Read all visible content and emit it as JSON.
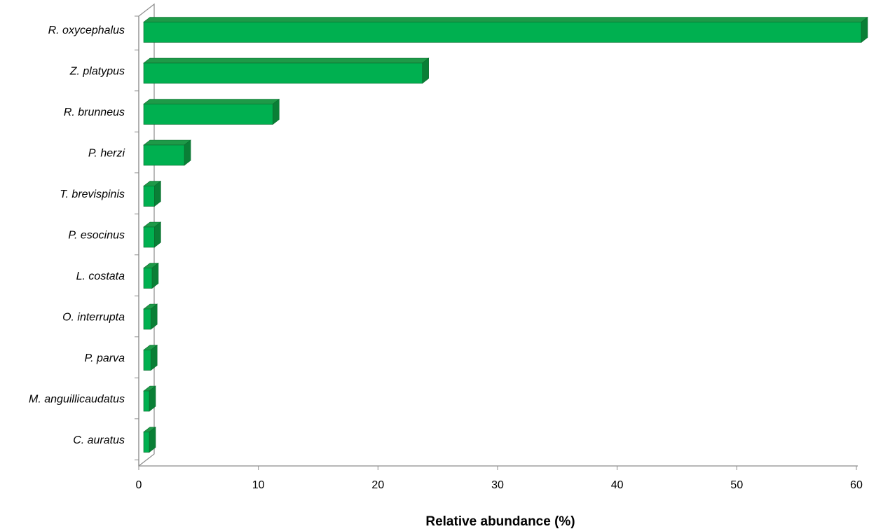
{
  "chart_data": {
    "type": "bar",
    "orientation": "horizontal",
    "style": "3d",
    "categories": [
      "R. oxycephalus",
      "Z. platypus",
      "R. brunneus",
      "P. herzi",
      "T. brevispinis",
      "P. esocinus",
      "L. costata",
      "O. interrupta",
      "P. parva",
      "M. anguillicaudatus",
      "C. auratus"
    ],
    "values": [
      60.0,
      23.3,
      10.8,
      3.4,
      0.9,
      0.9,
      0.7,
      0.6,
      0.6,
      0.4,
      0.4
    ],
    "xlabel": "Relative abundance (%)",
    "ylabel": "",
    "xlim": [
      0,
      60
    ],
    "xticks": [
      "0",
      "10",
      "20",
      "30",
      "40",
      "50",
      "60"
    ],
    "grid": false,
    "legend": "none",
    "colors": {
      "bar_front": "#00b050",
      "bar_top": "#1e9a48",
      "bar_side": "#0a7f36",
      "bar_edge": "#0b6b2e",
      "axis": "#8c8c8c"
    }
  }
}
